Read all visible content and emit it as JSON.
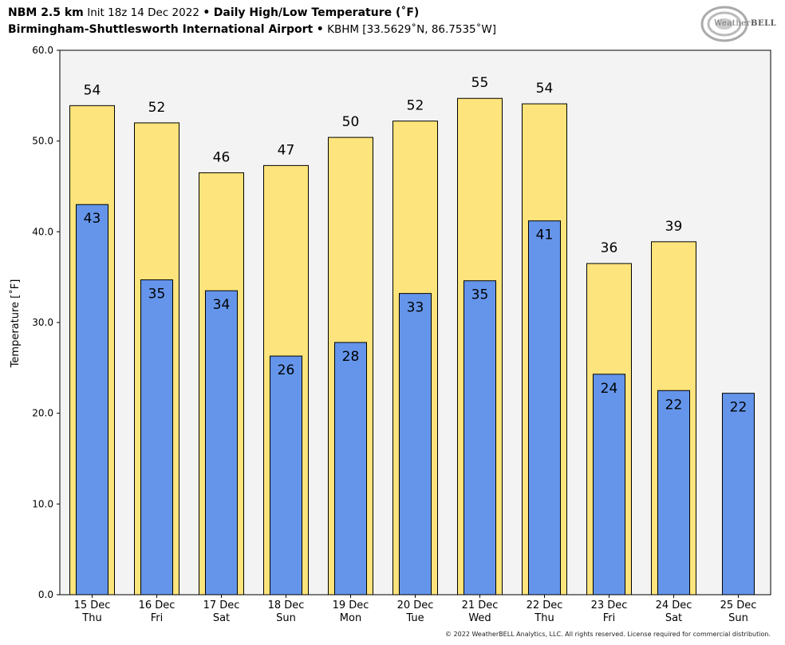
{
  "header": {
    "model": "NBM 2.5 km",
    "init": "Init 18z 14 Dec 2022",
    "separator": "•",
    "product": "Daily High/Low Temperature (˚F)",
    "station_name": "Birmingham-Shuttlesworth International Airport",
    "station_info": "KBHM [33.5629˚N, 86.7535˚W]"
  },
  "logo": {
    "text_a": "Weather",
    "text_b": "BELL"
  },
  "copyright": "© 2022 WeatherBELL Analytics, LLC. All rights reserved. License required for commercial distribution.",
  "colors": {
    "high": "#fde47c",
    "low": "#6495ea",
    "plot_bg": "#f3f3f3",
    "edge": "#000000"
  },
  "chart_data": {
    "type": "bar",
    "ylabel": "Temperature [˚F]",
    "xlabel": "",
    "ylim": [
      0,
      60
    ],
    "yticks": [
      "0.0",
      "10.0",
      "20.0",
      "30.0",
      "40.0",
      "50.0",
      "60.0"
    ],
    "categories": [
      [
        "15 Dec",
        "Thu"
      ],
      [
        "16 Dec",
        "Fri"
      ],
      [
        "17 Dec",
        "Sat"
      ],
      [
        "18 Dec",
        "Sun"
      ],
      [
        "19 Dec",
        "Mon"
      ],
      [
        "20 Dec",
        "Tue"
      ],
      [
        "21 Dec",
        "Wed"
      ],
      [
        "22 Dec",
        "Thu"
      ],
      [
        "23 Dec",
        "Fri"
      ],
      [
        "24 Dec",
        "Sat"
      ],
      [
        "25 Dec",
        "Sun"
      ]
    ],
    "series": [
      {
        "key": "high",
        "values": [
          53.9,
          52.0,
          46.5,
          47.3,
          50.4,
          52.2,
          54.7,
          54.1,
          36.5,
          38.9,
          null
        ],
        "labels": [
          "54",
          "52",
          "46",
          "47",
          "50",
          "52",
          "55",
          "54",
          "36",
          "39",
          ""
        ]
      },
      {
        "key": "low",
        "values": [
          43.0,
          34.7,
          33.5,
          26.3,
          27.8,
          33.2,
          34.6,
          41.2,
          24.3,
          22.5,
          22.2
        ],
        "labels": [
          "43",
          "35",
          "34",
          "26",
          "28",
          "33",
          "35",
          "41",
          "24",
          "22",
          "22"
        ]
      }
    ],
    "grid": false,
    "legend": "none"
  }
}
